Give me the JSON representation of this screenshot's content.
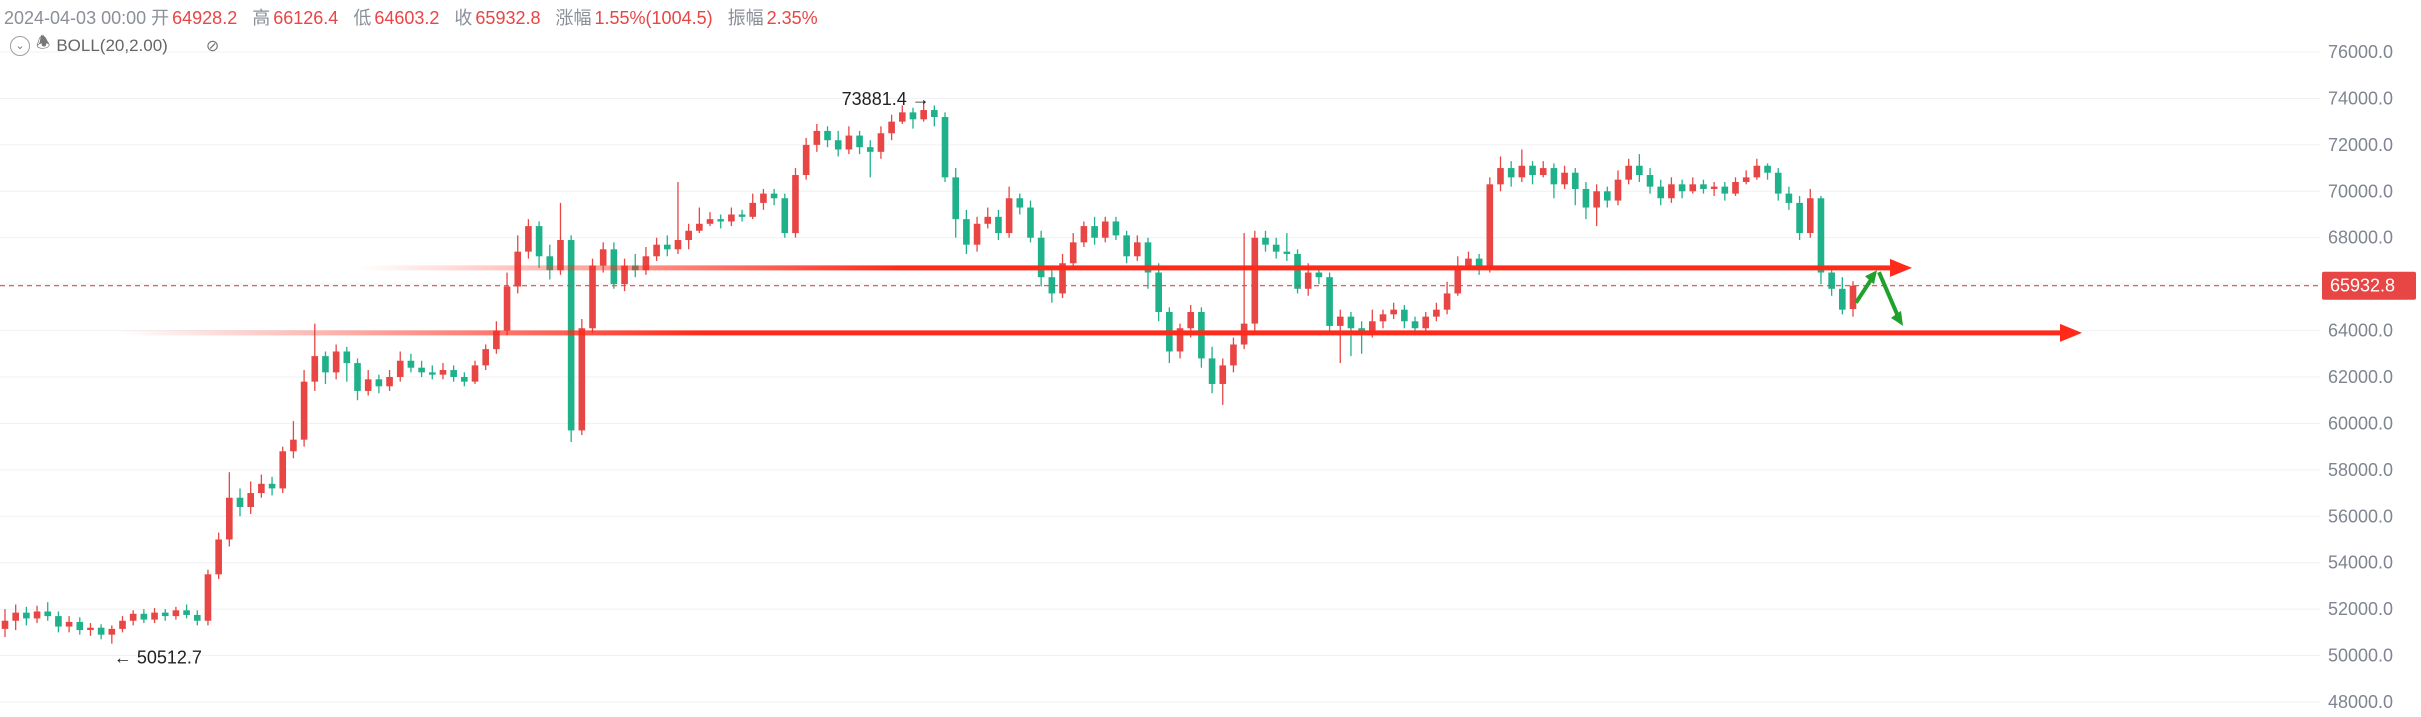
{
  "header": {
    "date": "2024-04-03 00:00",
    "open_label": "开",
    "open": "64928.2",
    "high_label": "高",
    "high": "66126.4",
    "low_label": "低",
    "low": "64603.2",
    "close_label": "收",
    "close": "65932.8",
    "change_label": "涨幅",
    "change": "1.55%(1004.5)",
    "amp_label": "振幅",
    "amp": "2.35%"
  },
  "indicator": {
    "name": "BOLL(20,2.00)",
    "icons": [
      "chevron-down-icon",
      "bell-icon",
      "eye-hidden-icon"
    ]
  },
  "chart_data": {
    "type": "candlestick",
    "y_axis": {
      "ticks": [
        48000,
        50000,
        52000,
        54000,
        56000,
        58000,
        60000,
        62000,
        64000,
        66000,
        68000,
        70000,
        72000,
        74000,
        76000
      ],
      "tick_labels": [
        "48000.0",
        "50000.0",
        "52000.0",
        "54000.0",
        "56000.0",
        "58000.0",
        "60000.0",
        "62000.0",
        "64000.0",
        "66000.0",
        "68000.0",
        "70000.0",
        "72000.0",
        "74000.0",
        "76000.0"
      ],
      "range": [
        47600,
        78200
      ],
      "gridlines": true
    },
    "current_price": {
      "value": 65932.8,
      "label": "65932.8",
      "color": "#e84545"
    },
    "high_marker": {
      "value": 73881.4,
      "label": "73881.4"
    },
    "low_marker": {
      "value": 50512.7,
      "label": "50512.7"
    },
    "support_resistance_lines": [
      {
        "price": 66700,
        "color": "#ff2a1a"
      },
      {
        "price": 63900,
        "color": "#ff2a1a"
      }
    ],
    "projection_arrows": {
      "color": "#1fa12b",
      "path": [
        65200,
        66600,
        64200
      ]
    },
    "up_color": "#e84545",
    "down_color": "#1fb18a",
    "candles": [
      [
        51150,
        51500,
        52000,
        50800
      ],
      [
        51500,
        51850,
        52200,
        51100
      ],
      [
        51850,
        51600,
        52100,
        51300
      ],
      [
        51600,
        51900,
        52150,
        51400
      ],
      [
        51900,
        51700,
        52300,
        51500
      ],
      [
        51700,
        51250,
        51900,
        51000
      ],
      [
        51250,
        51450,
        51700,
        51000
      ],
      [
        51450,
        51100,
        51650,
        50900
      ],
      [
        51100,
        51200,
        51400,
        50850
      ],
      [
        51200,
        50900,
        51350,
        50700
      ],
      [
        50900,
        51150,
        51300,
        50512
      ],
      [
        51150,
        51500,
        51700,
        51000
      ],
      [
        51500,
        51800,
        51950,
        51300
      ],
      [
        51800,
        51550,
        52000,
        51400
      ],
      [
        51550,
        51850,
        52050,
        51400
      ],
      [
        51850,
        51700,
        52000,
        51500
      ],
      [
        51700,
        51950,
        52100,
        51550
      ],
      [
        51950,
        51750,
        52200,
        51600
      ],
      [
        51750,
        51500,
        51950,
        51300
      ],
      [
        51500,
        53500,
        53700,
        51300
      ],
      [
        53500,
        55000,
        55300,
        53300
      ],
      [
        55000,
        56800,
        57900,
        54700
      ],
      [
        56800,
        56400,
        57200,
        56000
      ],
      [
        56400,
        57000,
        57500,
        56100
      ],
      [
        57000,
        57400,
        57800,
        56800
      ],
      [
        57400,
        57200,
        57700,
        56900
      ],
      [
        57200,
        58800,
        59000,
        57000
      ],
      [
        58800,
        59300,
        60100,
        58500
      ],
      [
        59300,
        61800,
        62300,
        59000
      ],
      [
        61800,
        62900,
        64300,
        61400
      ],
      [
        62900,
        62200,
        63100,
        61700
      ],
      [
        62200,
        63100,
        63400,
        61900
      ],
      [
        63100,
        62600,
        63300,
        61800
      ],
      [
        62600,
        61400,
        62800,
        61000
      ],
      [
        61400,
        61900,
        62300,
        61200
      ],
      [
        61900,
        61600,
        62100,
        61300
      ],
      [
        61600,
        62000,
        62300,
        61400
      ],
      [
        62000,
        62700,
        63100,
        61800
      ],
      [
        62700,
        62400,
        63000,
        62200
      ],
      [
        62400,
        62200,
        62700,
        62000
      ],
      [
        62200,
        62100,
        62500,
        61900
      ],
      [
        62100,
        62300,
        62600,
        61900
      ],
      [
        62300,
        62000,
        62500,
        61800
      ],
      [
        62000,
        61800,
        62200,
        61600
      ],
      [
        61800,
        62500,
        62700,
        61700
      ],
      [
        62500,
        63200,
        63400,
        62300
      ],
      [
        63200,
        64000,
        64400,
        63000
      ],
      [
        64000,
        65900,
        66500,
        63800
      ],
      [
        65900,
        67400,
        68100,
        65600
      ],
      [
        67400,
        68500,
        68800,
        67100
      ],
      [
        68500,
        67200,
        68700,
        66700
      ],
      [
        67200,
        66600,
        67700,
        66200
      ],
      [
        66600,
        67900,
        69500,
        66400
      ],
      [
        67900,
        59700,
        68100,
        59200
      ],
      [
        59700,
        64100,
        64500,
        59500
      ],
      [
        64100,
        66800,
        67100,
        63900
      ],
      [
        66800,
        67500,
        67800,
        66500
      ],
      [
        67500,
        66000,
        67800,
        65800
      ],
      [
        66000,
        66800,
        67100,
        65700
      ],
      [
        66800,
        66600,
        67300,
        66300
      ],
      [
        66600,
        67200,
        67600,
        66400
      ],
      [
        67200,
        67700,
        68000,
        67000
      ],
      [
        67700,
        67500,
        68100,
        67200
      ],
      [
        67500,
        67900,
        70400,
        67300
      ],
      [
        67900,
        68300,
        68600,
        67500
      ],
      [
        68300,
        68600,
        69300,
        68200
      ],
      [
        68600,
        68800,
        69100,
        68500
      ],
      [
        68800,
        68700,
        69000,
        68400
      ],
      [
        68700,
        69000,
        69300,
        68500
      ],
      [
        69000,
        68900,
        69200,
        68700
      ],
      [
        68900,
        69500,
        69900,
        68800
      ],
      [
        69500,
        69900,
        70100,
        69200
      ],
      [
        69900,
        69700,
        70100,
        69400
      ],
      [
        69700,
        68200,
        69900,
        68000
      ],
      [
        68200,
        70700,
        71000,
        68000
      ],
      [
        70700,
        72000,
        72300,
        70500
      ],
      [
        72000,
        72600,
        72900,
        71700
      ],
      [
        72600,
        72200,
        72800,
        71900
      ],
      [
        72200,
        71800,
        72600,
        71500
      ],
      [
        71800,
        72400,
        72800,
        71600
      ],
      [
        72400,
        71900,
        72600,
        71600
      ],
      [
        71900,
        71700,
        72200,
        70600
      ],
      [
        71700,
        72500,
        72800,
        71400
      ],
      [
        72500,
        73000,
        73300,
        72200
      ],
      [
        73000,
        73400,
        73700,
        72900
      ],
      [
        73400,
        73100,
        73600,
        72700
      ],
      [
        73100,
        73500,
        73881,
        73000
      ],
      [
        73500,
        73200,
        73700,
        72800
      ],
      [
        73200,
        70600,
        73400,
        70400
      ],
      [
        70600,
        68800,
        71000,
        68000
      ],
      [
        68800,
        67700,
        69200,
        67300
      ],
      [
        67700,
        68600,
        68900,
        67400
      ],
      [
        68600,
        68900,
        69300,
        68400
      ],
      [
        68900,
        68200,
        69200,
        67900
      ],
      [
        68200,
        69700,
        70200,
        68000
      ],
      [
        69700,
        69300,
        69900,
        69000
      ],
      [
        69300,
        68000,
        69600,
        67800
      ],
      [
        68000,
        66300,
        68300,
        65900
      ],
      [
        66300,
        65600,
        66800,
        65200
      ],
      [
        65600,
        66900,
        67300,
        65400
      ],
      [
        66900,
        67800,
        68200,
        66700
      ],
      [
        67800,
        68500,
        68700,
        67600
      ],
      [
        68500,
        68000,
        68900,
        67700
      ],
      [
        68000,
        68700,
        68900,
        67800
      ],
      [
        68700,
        68100,
        68900,
        67900
      ],
      [
        68100,
        67200,
        68300,
        66900
      ],
      [
        67200,
        67800,
        68100,
        67000
      ],
      [
        67800,
        66500,
        68000,
        65800
      ],
      [
        66500,
        64800,
        66900,
        64400
      ],
      [
        64800,
        63100,
        65000,
        62600
      ],
      [
        63100,
        64100,
        64300,
        62800
      ],
      [
        64100,
        64800,
        65100,
        63700
      ],
      [
        64800,
        62800,
        65000,
        62400
      ],
      [
        62800,
        61700,
        63300,
        61300
      ],
      [
        61700,
        62500,
        62800,
        60800
      ],
      [
        62500,
        63400,
        63700,
        62200
      ],
      [
        63400,
        64300,
        68200,
        63200
      ],
      [
        64300,
        68000,
        68300,
        64000
      ],
      [
        68000,
        67700,
        68300,
        67400
      ],
      [
        67700,
        67400,
        68000,
        67100
      ],
      [
        67400,
        67300,
        68200,
        67000
      ],
      [
        67300,
        65800,
        67500,
        65600
      ],
      [
        65800,
        66500,
        66900,
        65500
      ],
      [
        66500,
        66300,
        66800,
        66000
      ],
      [
        66300,
        64200,
        66500,
        63900
      ],
      [
        64200,
        64600,
        64900,
        62600
      ],
      [
        64600,
        64100,
        64800,
        62900
      ],
      [
        64100,
        63900,
        64400,
        63000
      ],
      [
        63900,
        64400,
        64900,
        63700
      ],
      [
        64400,
        64700,
        64900,
        64100
      ],
      [
        64700,
        64900,
        65200,
        64500
      ],
      [
        64900,
        64400,
        65100,
        64100
      ],
      [
        64400,
        64100,
        64600,
        63800
      ],
      [
        64100,
        64600,
        64800,
        63900
      ],
      [
        64600,
        64900,
        65200,
        64400
      ],
      [
        64900,
        65600,
        66100,
        64700
      ],
      [
        65600,
        66800,
        67200,
        65500
      ],
      [
        66800,
        67100,
        67400,
        66600
      ],
      [
        67100,
        66700,
        67300,
        66400
      ],
      [
        66700,
        70300,
        70600,
        66500
      ],
      [
        70300,
        71000,
        71500,
        70000
      ],
      [
        71000,
        70600,
        71300,
        70200
      ],
      [
        70600,
        71100,
        71800,
        70400
      ],
      [
        71100,
        70700,
        71300,
        70300
      ],
      [
        70700,
        71000,
        71300,
        70600
      ],
      [
        71000,
        70300,
        71200,
        69700
      ],
      [
        70300,
        70800,
        71100,
        70100
      ],
      [
        70800,
        70100,
        71000,
        69400
      ],
      [
        70100,
        69300,
        70400,
        68800
      ],
      [
        69300,
        70000,
        70300,
        68500
      ],
      [
        70000,
        69600,
        70200,
        69300
      ],
      [
        69600,
        70500,
        70900,
        69400
      ],
      [
        70500,
        71100,
        71400,
        70300
      ],
      [
        71100,
        70700,
        71600,
        70400
      ],
      [
        70700,
        70200,
        71000,
        69900
      ],
      [
        70200,
        69700,
        70500,
        69400
      ],
      [
        69700,
        70300,
        70600,
        69500
      ],
      [
        70300,
        70000,
        70500,
        69700
      ],
      [
        70000,
        70300,
        70600,
        69900
      ],
      [
        70300,
        70100,
        70500,
        69900
      ],
      [
        70100,
        70200,
        70400,
        69800
      ],
      [
        70200,
        69900,
        70400,
        69600
      ],
      [
        69900,
        70400,
        70600,
        69800
      ],
      [
        70400,
        70600,
        70900,
        70300
      ],
      [
        70600,
        71100,
        71400,
        70500
      ],
      [
        71100,
        70800,
        71200,
        70500
      ],
      [
        70800,
        69900,
        71000,
        69600
      ],
      [
        69900,
        69500,
        70200,
        69200
      ],
      [
        69500,
        68200,
        69800,
        67900
      ],
      [
        68200,
        69700,
        70100,
        68000
      ],
      [
        69700,
        66500,
        69800,
        66000
      ],
      [
        66500,
        65800,
        66800,
        65500
      ],
      [
        65800,
        64900,
        66300,
        64700
      ],
      [
        64928,
        65933,
        66126,
        64603
      ]
    ]
  }
}
